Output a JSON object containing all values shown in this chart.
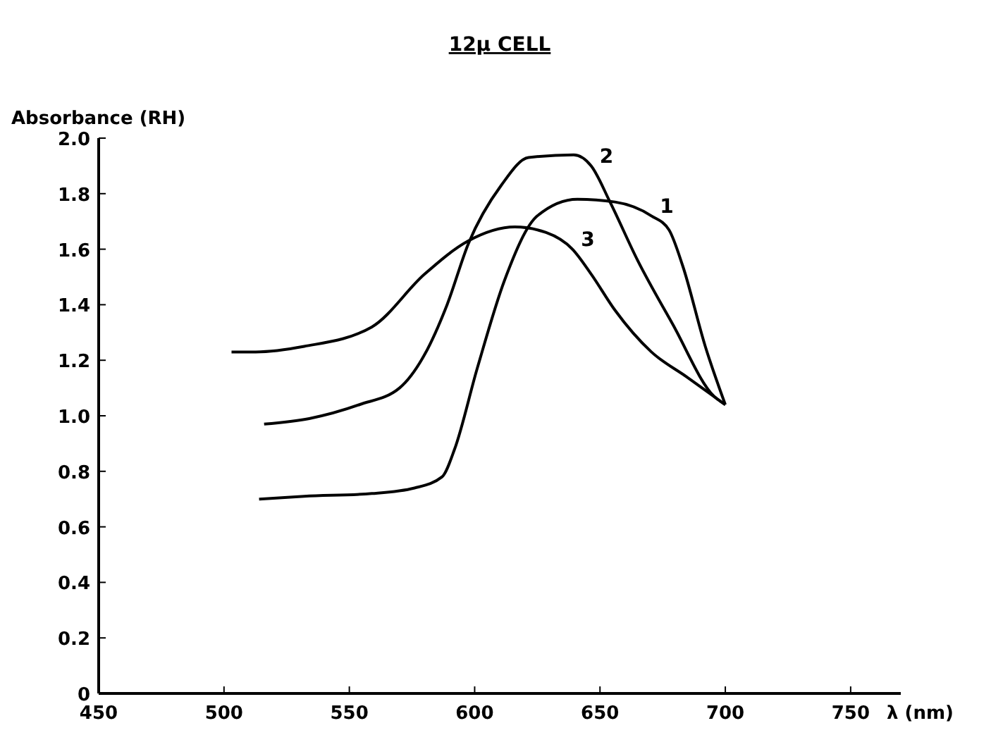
{
  "chart_data": {
    "type": "line",
    "title": "12μ CELL",
    "xlabel": "λ (nm)",
    "ylabel": "Absorbance (RH)",
    "xlim": [
      450,
      770
    ],
    "xticks": [
      450,
      500,
      550,
      600,
      650,
      700,
      750
    ],
    "ylim": [
      0,
      2.0
    ],
    "yticks": [
      0,
      0.2,
      0.4,
      0.6,
      0.8,
      {
        "value": 1.0,
        "label": "1.0"
      },
      1.2,
      1.4,
      1.6,
      1.8,
      {
        "value": 2.0,
        "label": "2.0"
      }
    ],
    "grid": false,
    "marker": "none",
    "line_style": "solid",
    "series": [
      {
        "name": "1",
        "color": "#000000",
        "x": [
          514,
          532,
          559,
          576,
          587,
          592,
          601,
          612,
          625,
          641,
          656,
          670.5,
          677.5,
          683,
          692,
          700
        ],
        "values": [
          0.7,
          0.71,
          0.72,
          0.74,
          0.78,
          0.88,
          1.17,
          1.49,
          1.72,
          1.78,
          1.77,
          1.72,
          1.67,
          1.54,
          1.25,
          1.04
        ]
      },
      {
        "name": "2",
        "color": "#000000",
        "x": [
          516,
          534,
          554,
          570,
          580,
          589,
          597.5,
          610.6,
          621.5,
          639.5,
          646.5,
          654,
          665,
          679,
          695.5,
          700
        ],
        "values": [
          0.97,
          0.99,
          1.04,
          1.1,
          1.22,
          1.4,
          1.62,
          1.83,
          1.93,
          1.94,
          1.9,
          1.77,
          1.56,
          1.33,
          1.07,
          1.04
        ]
      },
      {
        "name": "3",
        "color": "#000000",
        "x": [
          503,
          512.6,
          532,
          559,
          580,
          597.5,
          616,
          628.5,
          639,
          646.5,
          656,
          670.5,
          684.6,
          700
        ],
        "values": [
          1.23,
          1.23,
          1.25,
          1.32,
          1.51,
          1.63,
          1.68,
          1.66,
          1.6,
          1.51,
          1.38,
          1.23,
          1.14,
          1.04
        ]
      }
    ]
  }
}
